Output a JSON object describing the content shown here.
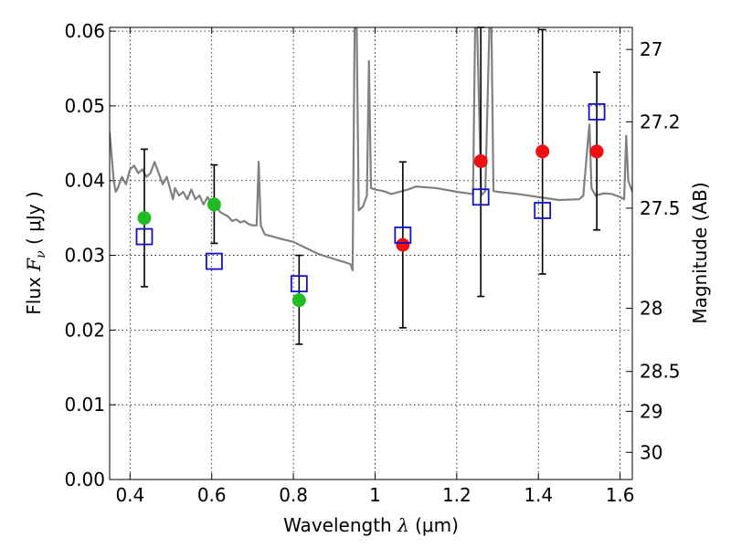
{
  "chart_data": {
    "type": "scatter",
    "xlabel": "Wavelength  λ (μm)",
    "ylabel_left": "Flux  F_ν  ( μJy )",
    "ylabel_left_parts": {
      "prefix": "Flux",
      "symbol": "F",
      "subscript": "ν",
      "unit": "( μJy )"
    },
    "xlabel_parts": {
      "prefix": "Wavelength",
      "symbol": "λ",
      "unit": "(μm)"
    },
    "ylabel_right": "Magnitude (AB)",
    "xlim": [
      0.35,
      1.63
    ],
    "ylim": [
      0,
      0.0605
    ],
    "grid": true,
    "x_ticks": [
      0.4,
      0.6,
      0.8,
      1.0,
      1.2,
      1.4,
      1.6
    ],
    "x_tick_labels": [
      "0.4",
      "0.6",
      "0.8",
      "1",
      "1.2",
      "1.4",
      "1.6"
    ],
    "y_ticks": [
      0,
      0.01,
      0.02,
      0.03,
      0.04,
      0.05,
      0.06
    ],
    "y_tick_labels": [
      "0.00",
      "0.01",
      "0.02",
      "0.03",
      "0.04",
      "0.05",
      "0.06"
    ],
    "right_ticks": [
      27,
      27.2,
      27.5,
      28,
      28.5,
      29,
      30
    ],
    "right_tick_labels": [
      "27",
      "27.2",
      "27.5",
      "28",
      "28.5",
      "29",
      "30"
    ],
    "colors": {
      "green": "#22bb22",
      "red": "#ee1111",
      "blue": "#1111cc",
      "model": "#808080",
      "error": "#000000"
    },
    "observed_green": [
      {
        "x": 0.435,
        "y": 0.035,
        "ylow": 0.0258,
        "yhigh": 0.0442
      },
      {
        "x": 0.606,
        "y": 0.0368,
        "ylow": 0.0316,
        "yhigh": 0.0421
      },
      {
        "x": 0.814,
        "y": 0.024,
        "ylow": 0.0181,
        "yhigh": 0.03
      }
    ],
    "observed_red": [
      {
        "x": 1.068,
        "y": 0.0314,
        "ylow": 0.0203,
        "yhigh": 0.0425
      },
      {
        "x": 1.259,
        "y": 0.0426,
        "ylow": 0.0245,
        "yhigh": 0.0605
      },
      {
        "x": 1.41,
        "y": 0.0439,
        "ylow": 0.0275,
        "yhigh": 0.0602
      },
      {
        "x": 1.543,
        "y": 0.0439,
        "ylow": 0.0334,
        "yhigh": 0.0545
      }
    ],
    "model_squares": [
      {
        "x": 0.435,
        "y": 0.0325
      },
      {
        "x": 0.606,
        "y": 0.0292
      },
      {
        "x": 0.814,
        "y": 0.0262
      },
      {
        "x": 1.068,
        "y": 0.0327
      },
      {
        "x": 1.259,
        "y": 0.0378
      },
      {
        "x": 1.41,
        "y": 0.036
      },
      {
        "x": 1.543,
        "y": 0.0492
      }
    ],
    "model_spectrum": {
      "x": [
        0.35,
        0.36,
        0.365,
        0.37,
        0.38,
        0.39,
        0.4,
        0.41,
        0.42,
        0.43,
        0.44,
        0.45,
        0.46,
        0.47,
        0.48,
        0.49,
        0.5,
        0.505,
        0.51,
        0.52,
        0.53,
        0.54,
        0.55,
        0.56,
        0.57,
        0.58,
        0.59,
        0.6,
        0.61,
        0.62,
        0.63,
        0.64,
        0.65,
        0.66,
        0.67,
        0.68,
        0.69,
        0.7,
        0.71,
        0.715,
        0.72,
        0.73,
        0.75,
        0.77,
        0.8,
        0.83,
        0.86,
        0.9,
        0.93,
        0.94,
        0.945,
        0.95,
        0.955,
        0.96,
        0.97,
        0.98,
        0.985,
        0.99,
        1.0,
        1.02,
        1.04,
        1.06,
        1.08,
        1.1,
        1.15,
        1.2,
        1.24,
        1.245,
        1.25,
        1.26,
        1.27,
        1.28,
        1.285,
        1.29,
        1.3,
        1.35,
        1.4,
        1.45,
        1.5,
        1.51,
        1.52,
        1.525,
        1.53,
        1.54,
        1.56,
        1.58,
        1.6,
        1.61,
        1.615,
        1.62,
        1.63
      ],
      "y": [
        0.0465,
        0.04,
        0.0385,
        0.039,
        0.0405,
        0.0395,
        0.0415,
        0.042,
        0.041,
        0.0415,
        0.0405,
        0.041,
        0.0425,
        0.041,
        0.0395,
        0.0405,
        0.0385,
        0.0375,
        0.039,
        0.038,
        0.0385,
        0.0375,
        0.0388,
        0.0375,
        0.038,
        0.0368,
        0.0378,
        0.0368,
        0.037,
        0.0358,
        0.0355,
        0.0352,
        0.0346,
        0.0348,
        0.0344,
        0.0346,
        0.0342,
        0.034,
        0.034,
        0.0425,
        0.034,
        0.0328,
        0.0325,
        0.0322,
        0.0318,
        0.031,
        0.0302,
        0.0295,
        0.029,
        0.0288,
        0.028,
        0.0605,
        0.0605,
        0.036,
        0.0365,
        0.038,
        0.056,
        0.039,
        0.0388,
        0.0386,
        0.0382,
        0.0385,
        0.0388,
        0.0392,
        0.039,
        0.0385,
        0.0382,
        0.0605,
        0.0605,
        0.038,
        0.0386,
        0.0605,
        0.0605,
        0.0386,
        0.0385,
        0.0382,
        0.0378,
        0.0374,
        0.0375,
        0.038,
        0.0445,
        0.0475,
        0.039,
        0.038,
        0.0383,
        0.0382,
        0.0378,
        0.0375,
        0.046,
        0.04,
        0.0385
      ]
    }
  }
}
